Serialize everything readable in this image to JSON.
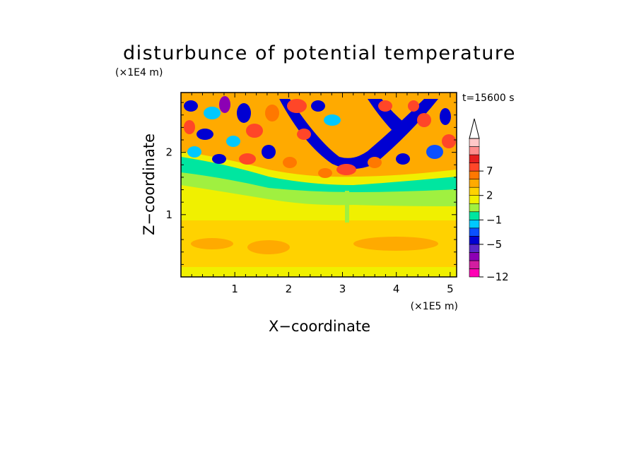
{
  "chart_data": {
    "type": "heatmap",
    "title": "disturbunce of potential temperature",
    "xlabel": "X−coordinate",
    "ylabel": "Z−coordinate",
    "x_unit": "(×1E5 m)",
    "y_unit": "(×1E4 m)",
    "time_label": "t=15600 s",
    "xlim": [
      0,
      5.12
    ],
    "ylim": [
      0,
      2.96
    ],
    "x_ticks": [
      1,
      2,
      3,
      4,
      5
    ],
    "x_tick_labels": [
      "1",
      "2",
      "3",
      "4",
      "5"
    ],
    "y_ticks": [
      1,
      2
    ],
    "y_tick_labels": [
      "1",
      "2"
    ],
    "colorbar": {
      "levels_low_to_high": [
        -12,
        -10,
        -8,
        -6,
        -5,
        -4,
        -2,
        -1,
        0,
        1,
        2,
        3,
        5,
        7,
        9,
        11,
        13
      ],
      "colors_low_to_high": [
        "#ff00b4",
        "#d21ea0",
        "#8c00b4",
        "#5a28c8",
        "#0000d2",
        "#0a50ff",
        "#00c8ff",
        "#00e6a0",
        "#a0f040",
        "#f0f000",
        "#ffd200",
        "#ffaa00",
        "#ff7800",
        "#ff4628",
        "#e61e1e",
        "#ff8c8c",
        "#ffc8c8"
      ],
      "tick_labels": [
        "−12",
        "−5",
        "−1",
        "2",
        "7"
      ],
      "tick_values": [
        -12,
        -5,
        -1,
        2,
        7
      ],
      "extend_max": true
    },
    "grid": false
  }
}
